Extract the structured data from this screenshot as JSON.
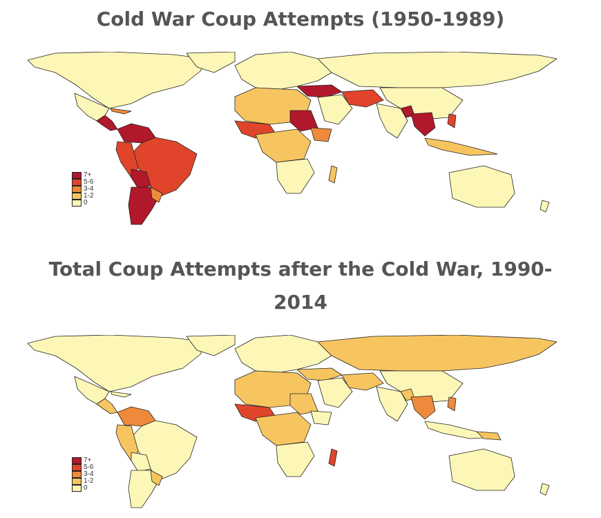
{
  "titles": {
    "map1": "Cold War Coup Attempts (1950-1989)",
    "map2_line1": "Total Coup Attempts after the Cold War, 1990-",
    "map2_line2": "2014"
  },
  "legend": [
    {
      "label": "7+",
      "color": "#b2182b"
    },
    {
      "label": "5-6",
      "color": "#e0452b"
    },
    {
      "label": "3-4",
      "color": "#ef8a3c"
    },
    {
      "label": "1-2",
      "color": "#f7c560"
    },
    {
      "label": "0",
      "color": "#fdf7b7"
    }
  ],
  "colors": {
    "zero": "#fdf7b7",
    "low": "#f7c560",
    "mid": "#ef8a3c",
    "high": "#e0452b",
    "top": "#b2182b",
    "border": "#222222"
  }
}
